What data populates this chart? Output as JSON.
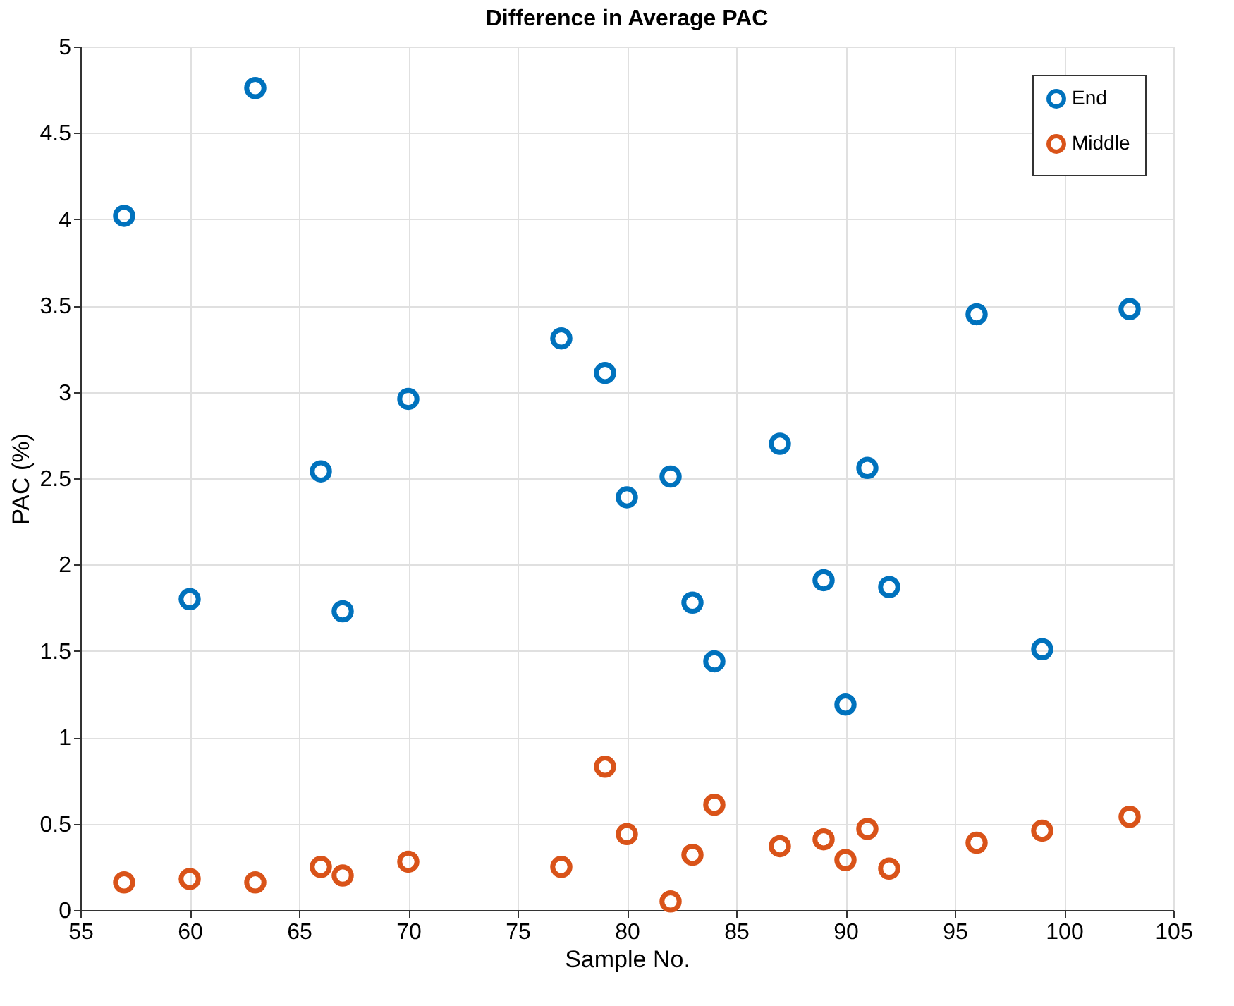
{
  "chart_data": {
    "type": "scatter",
    "title": "Difference in Average PAC",
    "xlabel": "Sample No.",
    "ylabel": "PAC (%)",
    "x": [
      57,
      60,
      63,
      66,
      67,
      70,
      77,
      79,
      80,
      82,
      83,
      84,
      87,
      89,
      90,
      91,
      92,
      96,
      99,
      103
    ],
    "series": [
      {
        "name": "End",
        "color": "#0072bd",
        "values": [
          4.02,
          1.8,
          4.76,
          2.54,
          1.73,
          2.96,
          3.31,
          3.11,
          2.39,
          2.51,
          1.78,
          1.44,
          2.7,
          1.91,
          1.19,
          2.56,
          1.87,
          3.45,
          1.51,
          3.48
        ]
      },
      {
        "name": "Middle",
        "color": "#d95319",
        "values": [
          0.16,
          0.18,
          0.16,
          0.25,
          0.2,
          0.28,
          0.25,
          0.83,
          0.44,
          0.05,
          0.32,
          0.61,
          0.37,
          0.41,
          0.29,
          0.47,
          0.24,
          0.39,
          0.46,
          0.54
        ]
      }
    ],
    "xlim": [
      55,
      105
    ],
    "xticks": [
      55,
      60,
      65,
      70,
      75,
      80,
      85,
      90,
      95,
      100,
      105
    ],
    "ylim": [
      0,
      5
    ],
    "yticks": [
      0,
      0.5,
      1,
      1.5,
      2,
      2.5,
      3,
      3.5,
      4,
      4.5,
      5
    ],
    "grid": true,
    "legend": "top right",
    "marker": "circle"
  }
}
